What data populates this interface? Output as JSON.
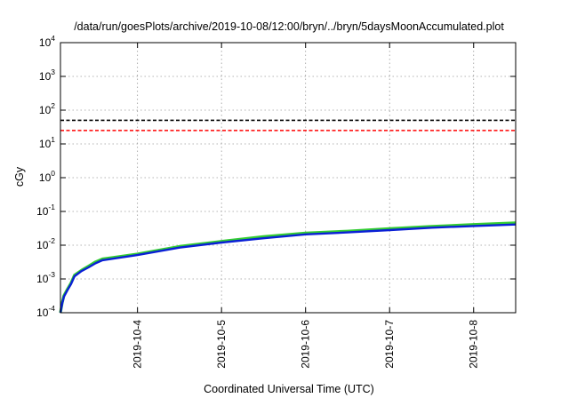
{
  "chart_data": {
    "type": "line",
    "title": "/data/run/goesPlots/archive/2019-10-08/12:00/bryn/../bryn/5daysMoonAccumulated.plot",
    "xlabel": "Coordinated Universal Time (UTC)",
    "ylabel": "cGy",
    "y_scale": "log",
    "ylim": [
      0.0001,
      10000
    ],
    "y_ticks": [
      {
        "value": 0.0001,
        "base": "10",
        "exp": "-4"
      },
      {
        "value": 0.001,
        "base": "10",
        "exp": "-3"
      },
      {
        "value": 0.01,
        "base": "10",
        "exp": "-2"
      },
      {
        "value": 0.1,
        "base": "10",
        "exp": "-1"
      },
      {
        "value": 1,
        "base": "10",
        "exp": "0"
      },
      {
        "value": 10,
        "base": "10",
        "exp": "1"
      },
      {
        "value": 100,
        "base": "10",
        "exp": "2"
      },
      {
        "value": 1000,
        "base": "10",
        "exp": "3"
      },
      {
        "value": 10000,
        "base": "10",
        "exp": "4"
      }
    ],
    "xlim": [
      "2019-10-03T02:00",
      "2019-10-08T12:00"
    ],
    "x_ticks": [
      "2019-10-4",
      "2019-10-5",
      "2019-10-6",
      "2019-10-7",
      "2019-10-8"
    ],
    "grid": true,
    "thresholds": [
      {
        "value": 50,
        "color": "#000000",
        "style": "dashed"
      },
      {
        "value": 25,
        "color": "#ff0000",
        "style": "dashed"
      }
    ],
    "series": [
      {
        "color": "#33cc33",
        "x": [
          "2019-10-03T02:00",
          "2019-10-03T02:30",
          "2019-10-03T03:00",
          "2019-10-03T04:00",
          "2019-10-03T05:00",
          "2019-10-03T06:00",
          "2019-10-03T08:00",
          "2019-10-03T10:00",
          "2019-10-03T12:00",
          "2019-10-03T14:00",
          "2019-10-04T00:00",
          "2019-10-04T12:00",
          "2019-10-05T00:00",
          "2019-10-05T12:00",
          "2019-10-06T00:00",
          "2019-10-06T12:00",
          "2019-10-07T00:00",
          "2019-10-07T12:00",
          "2019-10-08T00:00",
          "2019-10-08T12:00"
        ],
        "y": [
          0.0001,
          0.0002,
          0.00032,
          0.0005,
          0.00075,
          0.0013,
          0.0018,
          0.0024,
          0.0032,
          0.0039,
          0.0055,
          0.0092,
          0.013,
          0.018,
          0.023,
          0.026,
          0.031,
          0.036,
          0.041,
          0.046
        ]
      },
      {
        "color": "#0a1fd6",
        "x": [
          "2019-10-03T02:00",
          "2019-10-03T02:30",
          "2019-10-03T03:00",
          "2019-10-03T04:00",
          "2019-10-03T05:00",
          "2019-10-03T06:00",
          "2019-10-03T08:00",
          "2019-10-03T10:00",
          "2019-10-03T12:00",
          "2019-10-03T14:00",
          "2019-10-04T00:00",
          "2019-10-04T12:00",
          "2019-10-05T00:00",
          "2019-10-05T12:00",
          "2019-10-06T00:00",
          "2019-10-06T12:00",
          "2019-10-07T00:00",
          "2019-10-07T12:00",
          "2019-10-08T00:00",
          "2019-10-08T12:00"
        ],
        "y": [
          0.0001,
          0.00019,
          0.0003,
          0.00047,
          0.0007,
          0.0012,
          0.0017,
          0.0022,
          0.0029,
          0.0036,
          0.0051,
          0.0085,
          0.012,
          0.016,
          0.021,
          0.024,
          0.028,
          0.033,
          0.037,
          0.041
        ]
      }
    ]
  }
}
